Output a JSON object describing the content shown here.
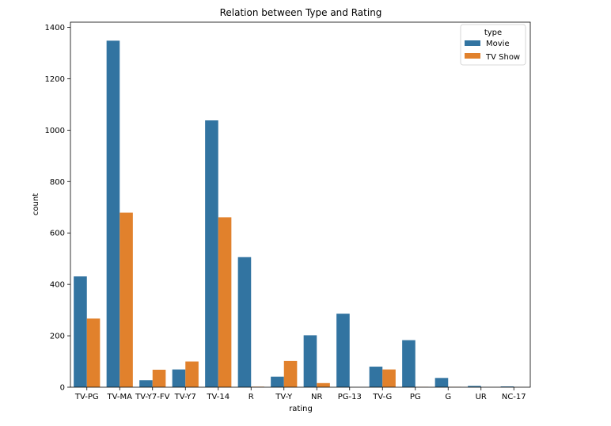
{
  "chart_data": {
    "type": "bar",
    "title": "Relation between Type and Rating",
    "xlabel": "rating",
    "ylabel": "count",
    "ylim": [
      0,
      1420
    ],
    "yticks": [
      0,
      200,
      400,
      600,
      800,
      1000,
      1200,
      1400
    ],
    "categories": [
      "TV-PG",
      "TV-MA",
      "TV-Y7-FV",
      "TV-Y7",
      "TV-14",
      "R",
      "TV-Y",
      "NR",
      "PG-13",
      "TV-G",
      "PG",
      "G",
      "UR",
      "NC-17"
    ],
    "series": [
      {
        "name": "Movie",
        "color": "#3274a1",
        "values": [
          431,
          1348,
          27,
          69,
          1038,
          506,
          41,
          202,
          286,
          80,
          183,
          36,
          5,
          3
        ]
      },
      {
        "name": "TV Show",
        "color": "#e1812c",
        "values": [
          267,
          679,
          68,
          100,
          661,
          2,
          102,
          16,
          0,
          69,
          1,
          1,
          0,
          0
        ]
      }
    ],
    "legend": {
      "title": "type",
      "placement": "top-right"
    },
    "grid": false
  }
}
